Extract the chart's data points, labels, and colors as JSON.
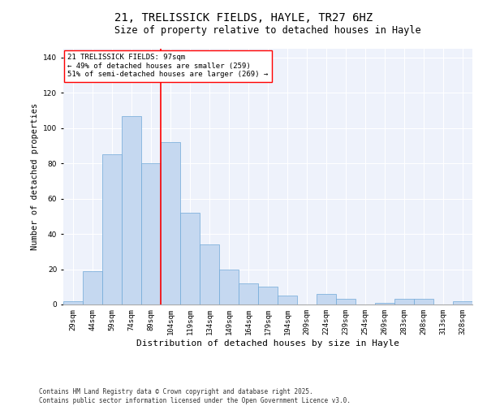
{
  "title1": "21, TRELISSICK FIELDS, HAYLE, TR27 6HZ",
  "title2": "Size of property relative to detached houses in Hayle",
  "xlabel": "Distribution of detached houses by size in Hayle",
  "ylabel": "Number of detached properties",
  "categories": [
    "29sqm",
    "44sqm",
    "59sqm",
    "74sqm",
    "89sqm",
    "104sqm",
    "119sqm",
    "134sqm",
    "149sqm",
    "164sqm",
    "179sqm",
    "194sqm",
    "209sqm",
    "224sqm",
    "239sqm",
    "254sqm",
    "269sqm",
    "283sqm",
    "298sqm",
    "313sqm",
    "328sqm"
  ],
  "values": [
    2,
    19,
    85,
    107,
    80,
    92,
    52,
    34,
    20,
    12,
    10,
    5,
    0,
    6,
    3,
    0,
    1,
    3,
    3,
    0,
    2
  ],
  "bar_color": "#c5d8f0",
  "bar_edge_color": "#6fa8d8",
  "vline_x": 4.5,
  "vline_color": "red",
  "annotation_text": "21 TRELISSICK FIELDS: 97sqm\n← 49% of detached houses are smaller (259)\n51% of semi-detached houses are larger (269) →",
  "annotation_box_color": "white",
  "annotation_box_edge": "red",
  "ylim": [
    0,
    145
  ],
  "yticks": [
    0,
    20,
    40,
    60,
    80,
    100,
    120,
    140
  ],
  "bg_color": "#eef2fb",
  "footer": "Contains HM Land Registry data © Crown copyright and database right 2025.\nContains public sector information licensed under the Open Government Licence v3.0.",
  "title1_fontsize": 10,
  "title2_fontsize": 8.5,
  "xlabel_fontsize": 8,
  "ylabel_fontsize": 7.5,
  "tick_fontsize": 6.5,
  "annot_fontsize": 6.5,
  "footer_fontsize": 5.5
}
